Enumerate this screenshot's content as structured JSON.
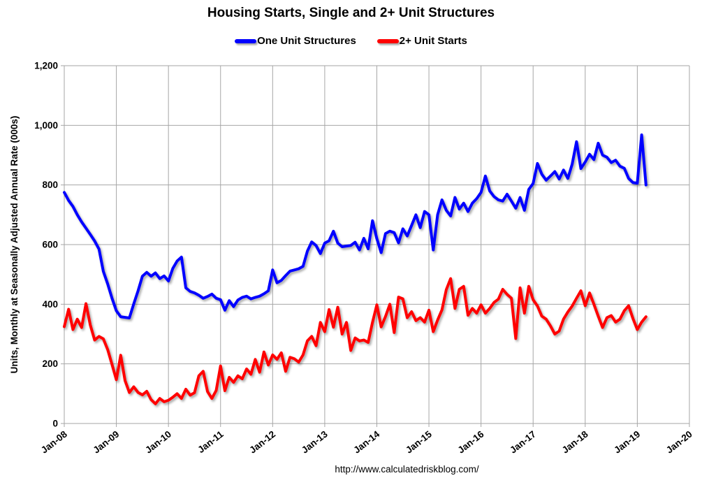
{
  "header": {
    "title": "Housing Starts, Single and 2+ Unit Structures"
  },
  "legend": {
    "items": [
      {
        "label": "One Unit Structures",
        "color": "#0000ff"
      },
      {
        "label": "2+ Unit Starts",
        "color": "#ff0000"
      }
    ]
  },
  "footer": {
    "url": "http://www.calculatedriskblog.com/"
  },
  "colors": {
    "series_one_unit": "#0000ff",
    "series_two_plus": "#ff0000",
    "gridline": "#a6a6a6",
    "text": "#000000",
    "background": "#ffffff"
  },
  "chart_data": {
    "type": "line",
    "title": "Housing Starts, Single and 2+ Unit Structures",
    "xlabel": "",
    "ylabel": "Units, Monthly at Seasonally Adjusted Annual Rate (000s)",
    "ylim": [
      0,
      1200
    ],
    "y_ticks": [
      0,
      200,
      400,
      600,
      800,
      1000,
      1200
    ],
    "y_tick_labels": [
      "0",
      "200",
      "400",
      "600",
      "800",
      "1,000",
      "1,200"
    ],
    "x_tick_labels": [
      "Jan-08",
      "Jan-09",
      "Jan-10",
      "Jan-11",
      "Jan-12",
      "Jan-13",
      "Jan-14",
      "Jan-15",
      "Jan-16",
      "Jan-17",
      "Jan-18",
      "Jan-19",
      "Jan-20"
    ],
    "x_start": "Jan-2008",
    "x_end": "Mar-2019",
    "x_frequency": "monthly",
    "grid": true,
    "legend_position": "top",
    "series": [
      {
        "name": "One Unit Structures",
        "color": "#0000ff",
        "values": [
          775,
          748,
          728,
          700,
          676,
          655,
          634,
          612,
          585,
          510,
          468,
          420,
          378,
          358,
          356,
          354,
          401,
          445,
          494,
          507,
          494,
          505,
          486,
          495,
          478,
          520,
          545,
          558,
          455,
          443,
          438,
          430,
          420,
          426,
          434,
          420,
          415,
          380,
          412,
          392,
          414,
          423,
          427,
          418,
          423,
          427,
          435,
          445,
          515,
          472,
          480,
          496,
          511,
          515,
          519,
          527,
          578,
          609,
          597,
          570,
          605,
          613,
          645,
          605,
          593,
          595,
          597,
          608,
          582,
          621,
          586,
          680,
          620,
          573,
          637,
          645,
          640,
          606,
          653,
          629,
          664,
          700,
          657,
          711,
          700,
          582,
          700,
          750,
          715,
          696,
          758,
          719,
          739,
          711,
          739,
          754,
          775,
          830,
          780,
          761,
          750,
          746,
          769,
          746,
          722,
          758,
          715,
          785,
          805,
          872,
          836,
          816,
          830,
          845,
          820,
          850,
          822,
          870,
          945,
          855,
          877,
          903,
          885,
          940,
          900,
          893,
          875,
          883,
          863,
          856,
          822,
          808,
          806,
          968,
          800
        ]
      },
      {
        "name": "2+ Unit Starts",
        "color": "#ff0000",
        "values": [
          325,
          383,
          315,
          350,
          322,
          402,
          330,
          280,
          292,
          284,
          248,
          198,
          147,
          229,
          144,
          104,
          123,
          104,
          96,
          108,
          80,
          66,
          84,
          73,
          78,
          88,
          100,
          84,
          115,
          95,
          103,
          160,
          175,
          107,
          84,
          111,
          193,
          110,
          155,
          138,
          160,
          150,
          183,
          165,
          215,
          172,
          240,
          196,
          230,
          215,
          237,
          175,
          222,
          217,
          206,
          230,
          277,
          292,
          261,
          339,
          308,
          382,
          323,
          390,
          300,
          339,
          245,
          287,
          277,
          280,
          272,
          339,
          398,
          324,
          359,
          400,
          305,
          424,
          418,
          355,
          375,
          345,
          355,
          340,
          380,
          308,
          347,
          381,
          449,
          486,
          386,
          450,
          460,
          363,
          386,
          370,
          398,
          370,
          386,
          406,
          417,
          450,
          433,
          420,
          285,
          455,
          370,
          460,
          415,
          394,
          360,
          350,
          327,
          300,
          310,
          350,
          374,
          394,
          420,
          445,
          395,
          438,
          400,
          360,
          322,
          355,
          362,
          340,
          350,
          378,
          395,
          352,
          315,
          340,
          358
        ]
      }
    ]
  }
}
